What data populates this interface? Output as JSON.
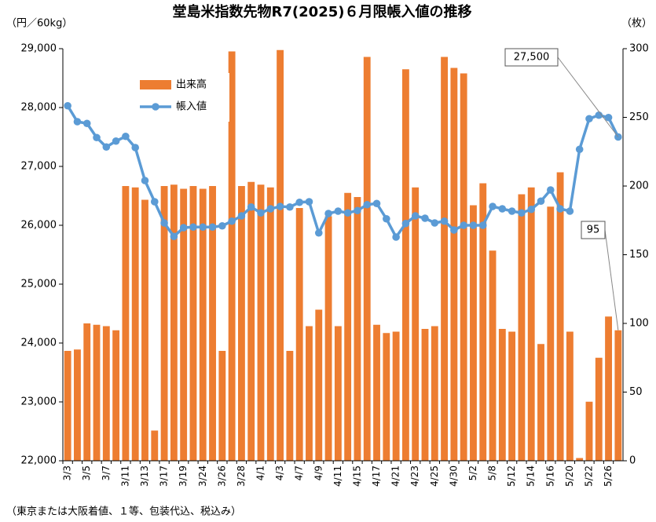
{
  "chart_data": {
    "type": "bar_line",
    "title": "堂島米指数先物R7(2025)６月限帳入値の推移",
    "y_label": "（円／60kg）",
    "y2_label": "（枚）",
    "note": "（東京または大阪着値、１等、包装代込、税込み）",
    "categories": [
      "3/3",
      null,
      "3/5",
      null,
      "3/7",
      null,
      "3/11",
      null,
      "3/13",
      null,
      "3/17",
      null,
      "3/19",
      null,
      "3/24",
      null,
      "3/26",
      null,
      "3/28",
      null,
      "4/1",
      null,
      "4/3",
      null,
      "4/7",
      null,
      "4/9",
      null,
      "4/11",
      null,
      "4/15",
      null,
      "4/17",
      null,
      "4/21",
      null,
      "4/23",
      null,
      "4/25",
      null,
      "4/30",
      null,
      "5/2",
      null,
      "5/8",
      null,
      "5/12",
      null,
      "5/14",
      null,
      "5/16",
      null,
      "5/20",
      null,
      "5/22",
      null,
      "5/26",
      null
    ],
    "series": [
      {
        "name": "出来高",
        "type": "bar",
        "axis": "y2",
        "color": "#ed7d31",
        "values": [
          80,
          81,
          100,
          99,
          98,
          95,
          200,
          199,
          190,
          22,
          200,
          201,
          198,
          200,
          198,
          200,
          80,
          298,
          200,
          203,
          201,
          199,
          299,
          80,
          184,
          98,
          110,
          178,
          98,
          195,
          192,
          294,
          99,
          93,
          94,
          285,
          199,
          96,
          98,
          294,
          286,
          282,
          186,
          202,
          153,
          96,
          94,
          194,
          199,
          85,
          185,
          210,
          94,
          2,
          43,
          75,
          105,
          95
        ],
        "value_labels": [
          null,
          null,
          null,
          null,
          null,
          null,
          null,
          null,
          null,
          null,
          null,
          null,
          null,
          null,
          null,
          null,
          null,
          null,
          null,
          null,
          null,
          null,
          null,
          null,
          null,
          null,
          null,
          null,
          null,
          null,
          null,
          null,
          null,
          null,
          null,
          null,
          null,
          null,
          null,
          null,
          null,
          null,
          null,
          null,
          null,
          null,
          null,
          null,
          null,
          null,
          null,
          null,
          null,
          null,
          null,
          null,
          null,
          "95"
        ]
      },
      {
        "name": "帳入値",
        "type": "line",
        "axis": "y",
        "color": "#5b9bd5",
        "values": [
          28030,
          27760,
          27730,
          27490,
          27330,
          27430,
          27510,
          27320,
          26760,
          26400,
          26040,
          25810,
          25960,
          25970,
          25970,
          25970,
          25990,
          26070,
          26160,
          26310,
          26210,
          26280,
          26320,
          26310,
          26390,
          26400,
          25870,
          26200,
          26240,
          26210,
          26250,
          26350,
          26370,
          26110,
          25800,
          26030,
          26160,
          26120,
          26040,
          26070,
          25920,
          26000,
          26000,
          26000,
          26320,
          26280,
          26240,
          26210,
          26270,
          26410,
          26600,
          26280,
          26240,
          27290,
          27810,
          27870,
          27830,
          27500
        ],
        "value_labels": [
          null,
          null,
          null,
          null,
          null,
          null,
          null,
          null,
          null,
          null,
          null,
          null,
          null,
          null,
          null,
          null,
          null,
          null,
          null,
          null,
          null,
          null,
          null,
          null,
          null,
          null,
          null,
          null,
          null,
          null,
          null,
          null,
          null,
          null,
          null,
          null,
          null,
          null,
          null,
          null,
          null,
          null,
          null,
          null,
          null,
          null,
          null,
          null,
          null,
          null,
          null,
          null,
          null,
          null,
          null,
          null,
          null,
          "27,500"
        ]
      }
    ],
    "ylim": [
      22000,
      29000
    ],
    "yticks": [
      {
        "value": 22000,
        "label": "22,000"
      },
      {
        "value": 23000,
        "label": "23,000"
      },
      {
        "value": 24000,
        "label": "24,000"
      },
      {
        "value": 25000,
        "label": "25,000"
      },
      {
        "value": 26000,
        "label": "26,000"
      },
      {
        "value": 27000,
        "label": "27,000"
      },
      {
        "value": 28000,
        "label": "28,000"
      },
      {
        "value": 29000,
        "label": "29,000"
      }
    ],
    "y2lim": [
      0,
      300
    ],
    "y2ticks": [
      0,
      50,
      100,
      150,
      200,
      250,
      300
    ],
    "legend": "upper left",
    "grid": false
  }
}
